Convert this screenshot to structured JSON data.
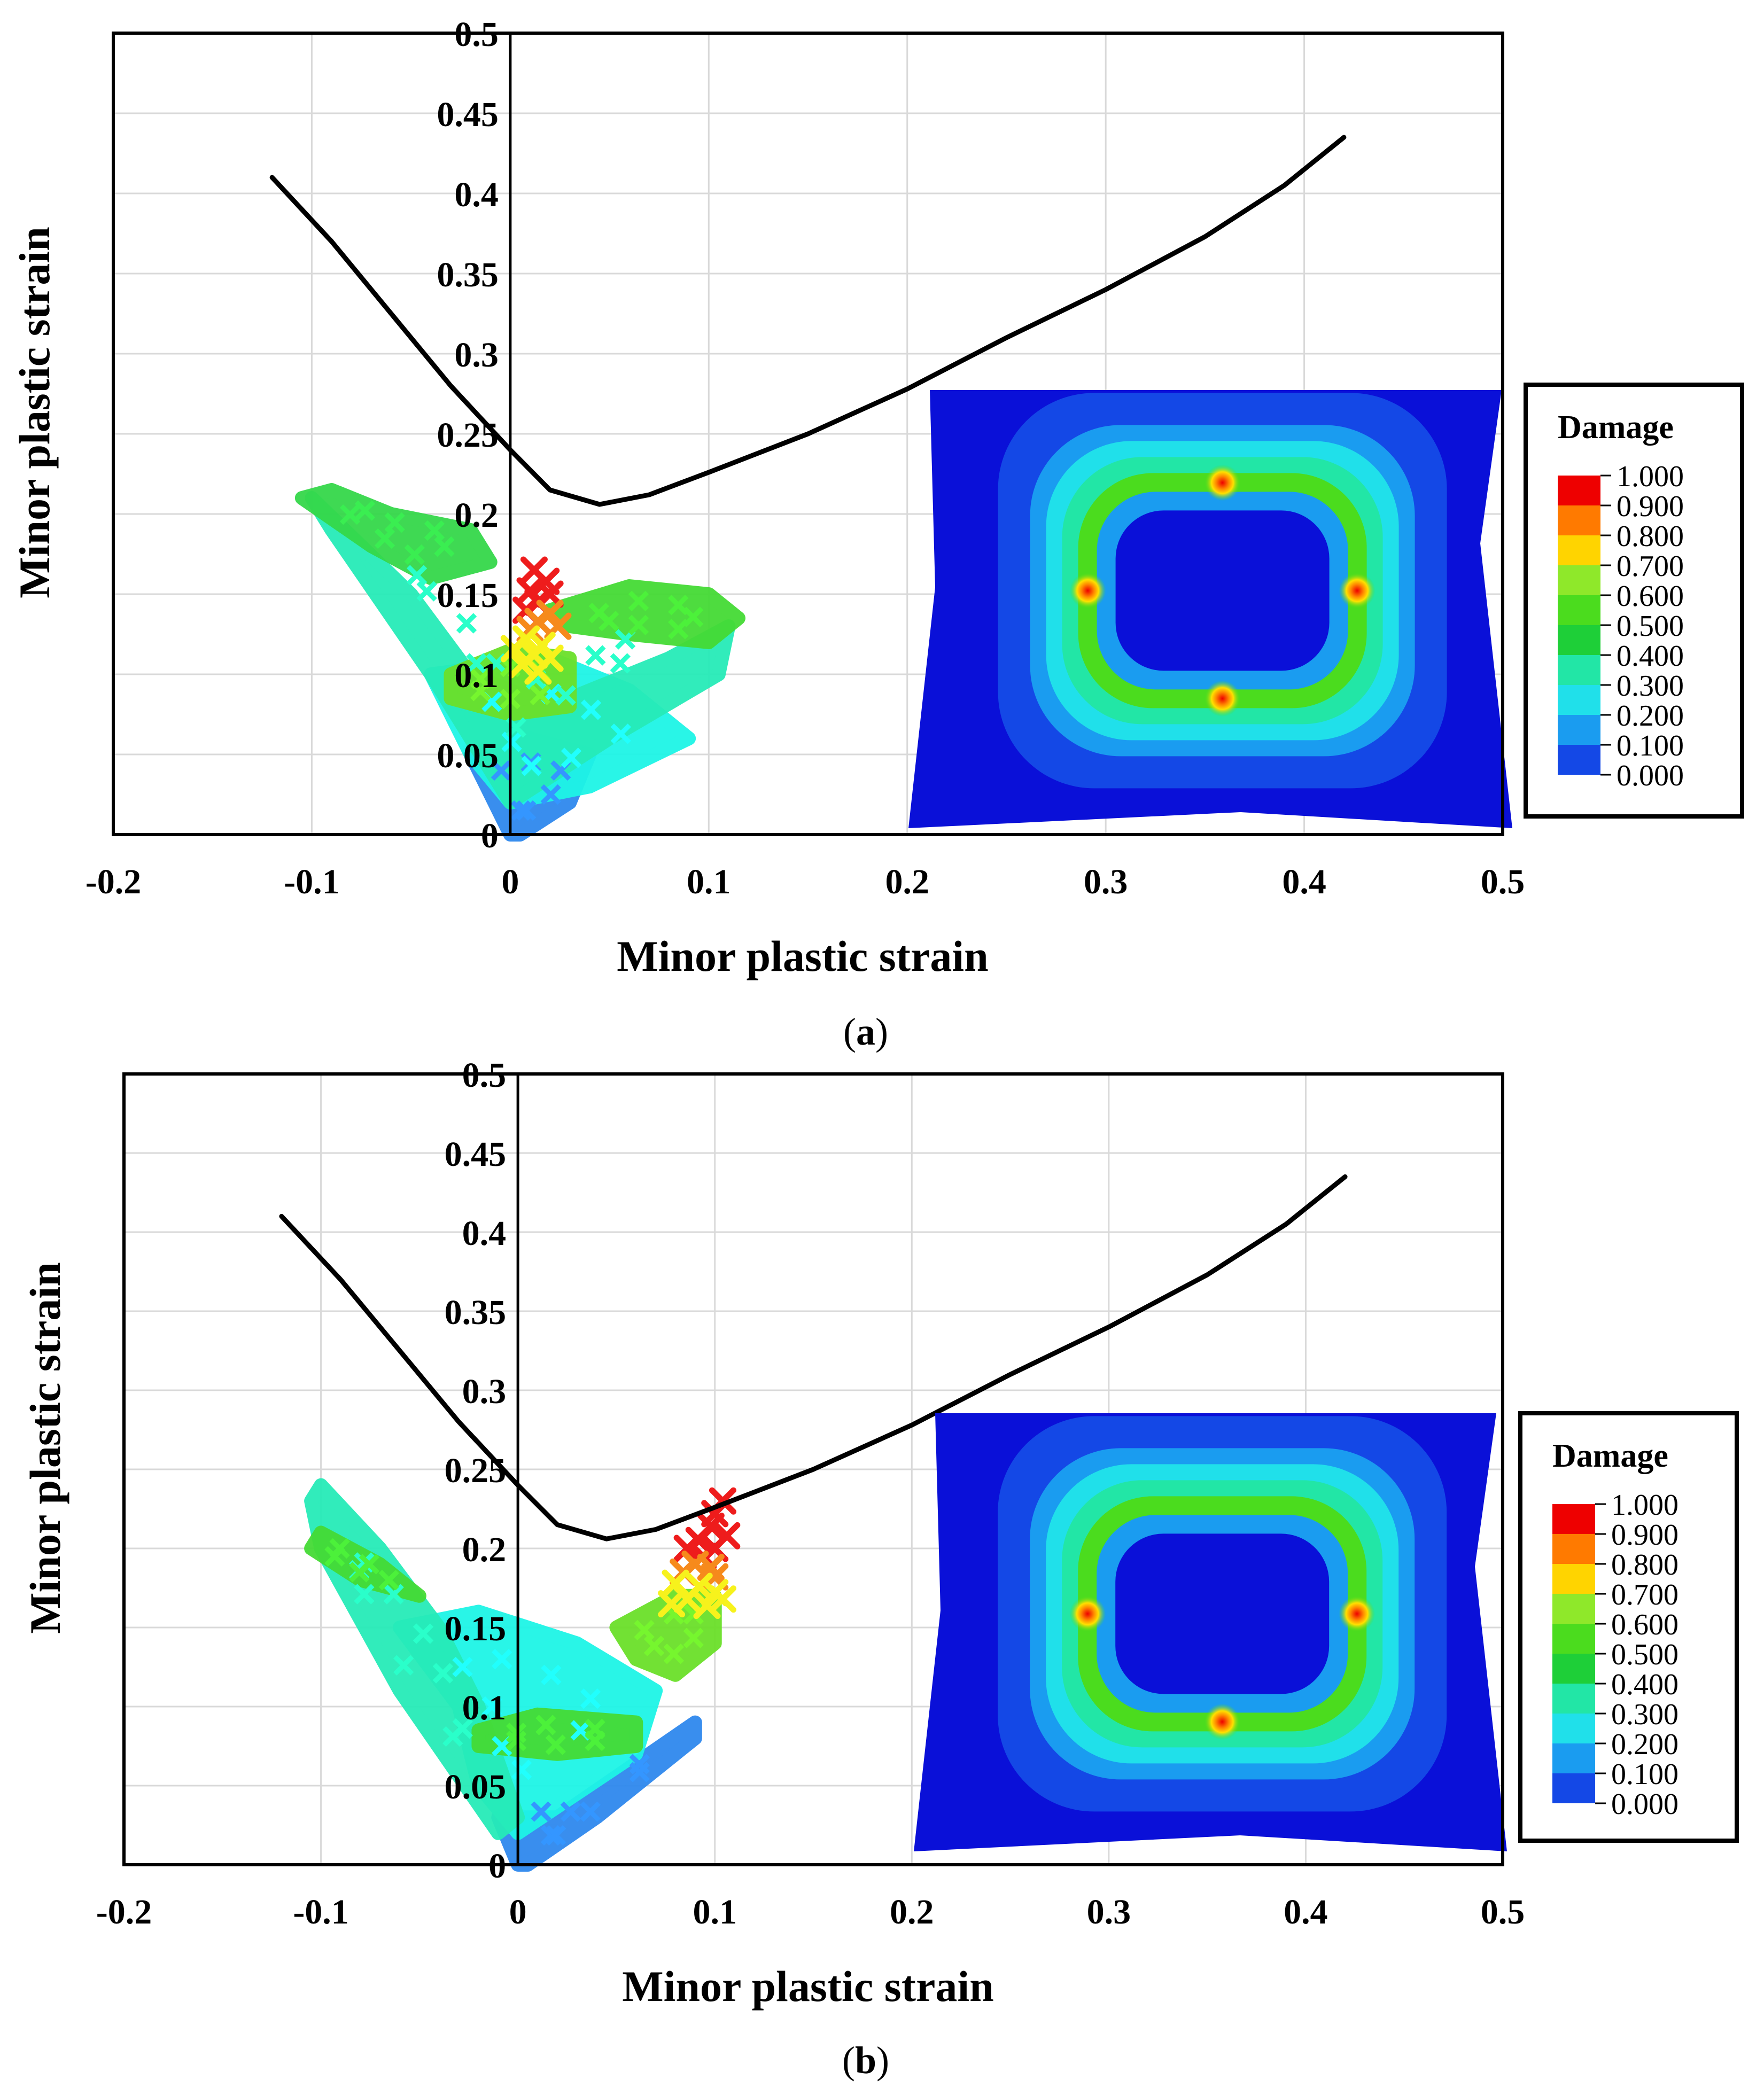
{
  "panels": [
    {
      "id": "a",
      "caption_open": "(",
      "caption_letter": "a",
      "caption_close": ")",
      "chart_data": {
        "type": "scatter",
        "xlabel": "Minor plastic strain",
        "ylabel": "Minor plastic strain",
        "xlim": [
          -0.2,
          0.5
        ],
        "ylim": [
          0,
          0.5
        ],
        "x_ticks": [
          "-0.2",
          "-0.1",
          "0",
          "0.1",
          "0.2",
          "0.3",
          "0.4",
          "0.5"
        ],
        "y_ticks": [
          "0",
          "0.05",
          "0.1",
          "0.15",
          "0.2",
          "0.25",
          "0.3",
          "0.35",
          "0.4",
          "0.45",
          "0.5"
        ],
        "grid": true,
        "fld_curve": [
          [
            -0.12,
            0.41
          ],
          [
            -0.09,
            0.37
          ],
          [
            -0.06,
            0.325
          ],
          [
            -0.03,
            0.28
          ],
          [
            0,
            0.24
          ],
          [
            0.02,
            0.215
          ],
          [
            0.045,
            0.206
          ],
          [
            0.07,
            0.212
          ],
          [
            0.1,
            0.226
          ],
          [
            0.15,
            0.25
          ],
          [
            0.2,
            0.278
          ],
          [
            0.25,
            0.31
          ],
          [
            0.3,
            0.34
          ],
          [
            0.35,
            0.373
          ],
          [
            0.39,
            0.405
          ],
          [
            0.42,
            0.435
          ]
        ],
        "scatter_regions": [
          {
            "color": "#2f88ee",
            "polygon": [
              [
                0,
                0
              ],
              [
                -0.02,
                0.05
              ],
              [
                0.01,
                0.06
              ],
              [
                0.04,
                0.05
              ],
              [
                0.03,
                0.02
              ],
              [
                0.005,
                0
              ]
            ]
          },
          {
            "color": "#1ef5e6",
            "polygon": [
              [
                -0.02,
                0.05
              ],
              [
                -0.04,
                0.1
              ],
              [
                0.02,
                0.11
              ],
              [
                0.06,
                0.09
              ],
              [
                0.09,
                0.06
              ],
              [
                0.04,
                0.03
              ],
              [
                0,
                0.02
              ]
            ]
          },
          {
            "color": "#26ebb8",
            "polygon": [
              [
                -0.1,
                0.21
              ],
              [
                -0.05,
                0.15
              ],
              [
                -0.02,
                0.1
              ],
              [
                0.02,
                0.08
              ],
              [
                0.08,
                0.11
              ],
              [
                0.11,
                0.13
              ],
              [
                0.105,
                0.1
              ],
              [
                0.05,
                0.06
              ],
              [
                0,
                0.02
              ],
              [
                -0.04,
                0.1
              ],
              [
                -0.09,
                0.19
              ]
            ]
          },
          {
            "color": "#35d84a",
            "polygon": [
              [
                -0.105,
                0.21
              ],
              [
                -0.07,
                0.18
              ],
              [
                -0.04,
                0.16
              ],
              [
                -0.01,
                0.17
              ],
              [
                -0.02,
                0.19
              ],
              [
                -0.06,
                0.2
              ],
              [
                -0.09,
                0.215
              ]
            ]
          },
          {
            "color": "#45db35",
            "polygon": [
              [
                0.02,
                0.14
              ],
              [
                0.06,
                0.155
              ],
              [
                0.1,
                0.15
              ],
              [
                0.115,
                0.135
              ],
              [
                0.1,
                0.12
              ],
              [
                0.06,
                0.125
              ],
              [
                0.03,
                0.13
              ]
            ]
          },
          {
            "color": "#6be02a",
            "polygon": [
              [
                -0.03,
                0.1
              ],
              [
                0,
                0.115
              ],
              [
                0.03,
                0.11
              ],
              [
                0.03,
                0.08
              ],
              [
                0,
                0.075
              ],
              [
                -0.03,
                0.085
              ]
            ]
          }
        ],
        "critical_points": [
          {
            "color": "#ee1c1c",
            "points": [
              [
                0.012,
                0.165
              ],
              [
                0.018,
                0.158
              ],
              [
                0.01,
                0.152
              ],
              [
                0.02,
                0.15
              ],
              [
                0.014,
                0.145
              ],
              [
                0.008,
                0.14
              ]
            ]
          },
          {
            "color": "#f68a1c",
            "points": [
              [
                0.02,
                0.138
              ],
              [
                0.014,
                0.133
              ],
              [
                0.024,
                0.13
              ],
              [
                0.01,
                0.128
              ]
            ]
          },
          {
            "color": "#f7f21c",
            "points": [
              [
                0.008,
                0.122
              ],
              [
                0.016,
                0.118
              ],
              [
                0.002,
                0.116
              ],
              [
                0.012,
                0.112
              ],
              [
                0.02,
                0.11
              ],
              [
                0.006,
                0.106
              ],
              [
                0.014,
                0.102
              ]
            ]
          }
        ]
      },
      "contour": {
        "legend_title": "Damage",
        "legend_values": [
          "1.000",
          "0.900",
          "0.800",
          "0.700",
          "0.600",
          "0.500",
          "0.400",
          "0.300",
          "0.200",
          "0.100",
          "0.000"
        ],
        "legend_colors": [
          "#ee0000",
          "#ff7a00",
          "#ffd400",
          "#8fe82a",
          "#4bdc1e",
          "#1ecf38",
          "#22e6a6",
          "#20e0ea",
          "#1a9cf0",
          "#1448e6",
          "#0a10d8"
        ],
        "hotspots": "top, left, right, bottom"
      }
    },
    {
      "id": "b",
      "caption_open": "(",
      "caption_letter": "b",
      "caption_close": ")",
      "chart_data": {
        "type": "scatter",
        "xlabel": "Minor plastic strain",
        "ylabel": "Minor plastic strain",
        "xlim": [
          -0.2,
          0.5
        ],
        "ylim": [
          0,
          0.5
        ],
        "x_ticks": [
          "-0.2",
          "-0.1",
          "0",
          "0.1",
          "0.2",
          "0.3",
          "0.4",
          "0.5"
        ],
        "y_ticks": [
          "0",
          "0.05",
          "0.1",
          "0.15",
          "0.2",
          "0.25",
          "0.3",
          "0.35",
          "0.4",
          "0.45",
          "0.5"
        ],
        "grid": true,
        "fld_curve": [
          [
            -0.12,
            0.41
          ],
          [
            -0.09,
            0.37
          ],
          [
            -0.06,
            0.325
          ],
          [
            -0.03,
            0.28
          ],
          [
            0,
            0.24
          ],
          [
            0.02,
            0.215
          ],
          [
            0.045,
            0.206
          ],
          [
            0.07,
            0.212
          ],
          [
            0.1,
            0.226
          ],
          [
            0.15,
            0.25
          ],
          [
            0.2,
            0.278
          ],
          [
            0.25,
            0.31
          ],
          [
            0.3,
            0.34
          ],
          [
            0.35,
            0.373
          ],
          [
            0.39,
            0.405
          ],
          [
            0.42,
            0.435
          ]
        ],
        "scatter_regions": [
          {
            "color": "#2f88ee",
            "polygon": [
              [
                0,
                0
              ],
              [
                -0.01,
                0.03
              ],
              [
                0.02,
                0.03
              ],
              [
                0.09,
                0.09
              ],
              [
                0.09,
                0.08
              ],
              [
                0.04,
                0.03
              ],
              [
                0.005,
                0
              ]
            ]
          },
          {
            "color": "#1ef5e6",
            "polygon": [
              [
                -0.03,
                0.1
              ],
              [
                -0.06,
                0.15
              ],
              [
                -0.02,
                0.16
              ],
              [
                0.03,
                0.14
              ],
              [
                0.07,
                0.11
              ],
              [
                0.06,
                0.07
              ],
              [
                0,
                0.02
              ],
              [
                -0.02,
                0.05
              ]
            ]
          },
          {
            "color": "#26ebb8",
            "polygon": [
              [
                -0.1,
                0.24
              ],
              [
                -0.07,
                0.2
              ],
              [
                -0.04,
                0.15
              ],
              [
                -0.02,
                0.1
              ],
              [
                0,
                0.03
              ],
              [
                -0.01,
                0.02
              ],
              [
                -0.06,
                0.11
              ],
              [
                -0.1,
                0.2
              ],
              [
                -0.105,
                0.23
              ]
            ]
          },
          {
            "color": "#45db35",
            "polygon": [
              [
                -0.1,
                0.21
              ],
              [
                -0.07,
                0.19
              ],
              [
                -0.05,
                0.17
              ],
              [
                -0.08,
                0.18
              ],
              [
                -0.105,
                0.2
              ]
            ]
          },
          {
            "color": "#45db35",
            "polygon": [
              [
                -0.02,
                0.085
              ],
              [
                0.01,
                0.095
              ],
              [
                0.06,
                0.09
              ],
              [
                0.06,
                0.075
              ],
              [
                0.02,
                0.07
              ],
              [
                -0.02,
                0.075
              ]
            ]
          },
          {
            "color": "#6be02a",
            "polygon": [
              [
                0.05,
                0.15
              ],
              [
                0.08,
                0.17
              ],
              [
                0.1,
                0.17
              ],
              [
                0.1,
                0.14
              ],
              [
                0.08,
                0.12
              ],
              [
                0.06,
                0.13
              ]
            ]
          }
        ],
        "critical_points": [
          {
            "color": "#ee1c1c",
            "points": [
              [
                0.104,
                0.23
              ],
              [
                0.1,
                0.222
              ],
              [
                0.098,
                0.214
              ],
              [
                0.106,
                0.208
              ],
              [
                0.092,
                0.205
              ],
              [
                0.086,
                0.2
              ],
              [
                0.1,
                0.2
              ],
              [
                0.094,
                0.195
              ]
            ]
          },
          {
            "color": "#f68a1c",
            "points": [
              [
                0.09,
                0.19
              ],
              [
                0.098,
                0.188
              ],
              [
                0.084,
                0.185
              ],
              [
                0.1,
                0.182
              ]
            ]
          },
          {
            "color": "#f7f21c",
            "points": [
              [
                0.08,
                0.178
              ],
              [
                0.092,
                0.176
              ],
              [
                0.1,
                0.172
              ],
              [
                0.086,
                0.168
              ],
              [
                0.096,
                0.164
              ],
              [
                0.078,
                0.165
              ],
              [
                0.104,
                0.168
              ]
            ]
          }
        ]
      },
      "contour": {
        "legend_title": "Damage",
        "legend_values": [
          "1.000",
          "0.900",
          "0.800",
          "0.700",
          "0.600",
          "0.500",
          "0.400",
          "0.300",
          "0.200",
          "0.100",
          "0.000"
        ],
        "legend_colors": [
          "#ee0000",
          "#ff7a00",
          "#ffd400",
          "#8fe82a",
          "#4bdc1e",
          "#1ecf38",
          "#22e6a6",
          "#20e0ea",
          "#1a9cf0",
          "#1448e6",
          "#0a10d8"
        ],
        "hotspots": "left, right, bottom"
      }
    }
  ]
}
